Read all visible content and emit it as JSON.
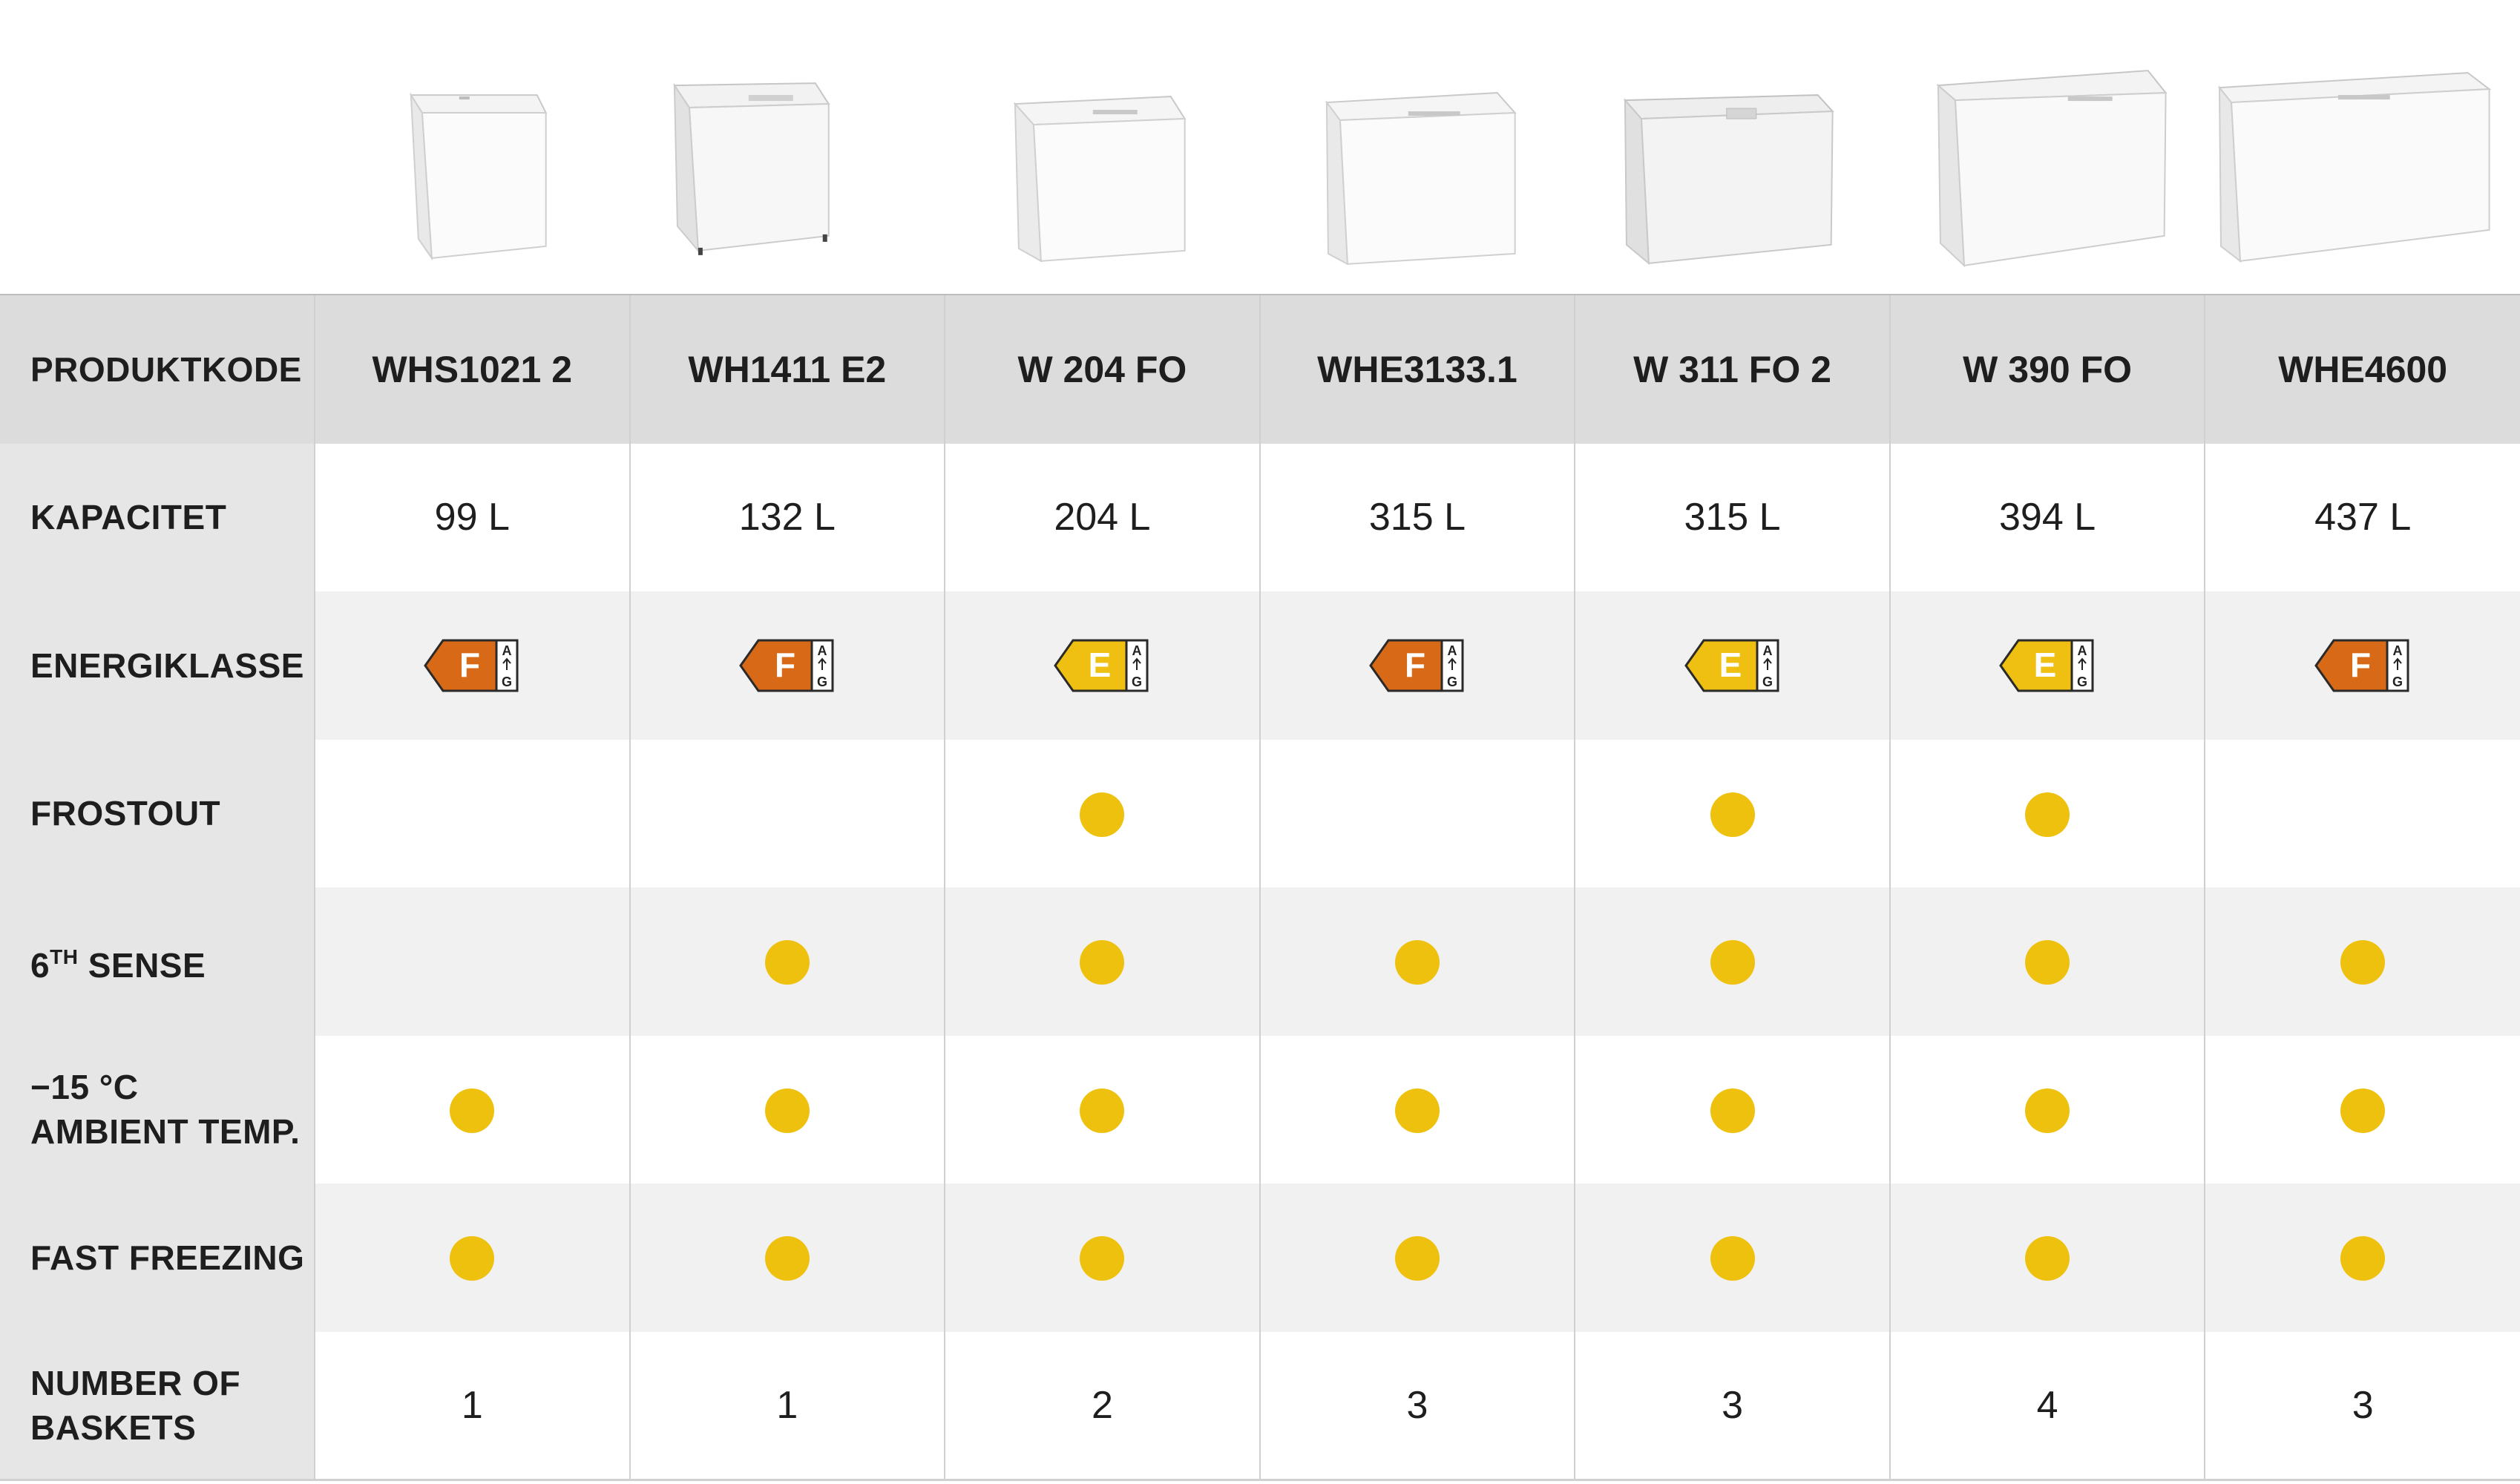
{
  "colors": {
    "header_bg": "#dcdcdc",
    "label_bg": "#e6e6e6",
    "odd_row_bg": "#f1f1f1",
    "dot": "#efc10f",
    "energy_F": "#d86a17",
    "energy_E": "#efbf12"
  },
  "table": {
    "header": {
      "label": "PRODUKTKODE",
      "codes": [
        "WHS1021 2",
        "WH1411 E2",
        "W 204 FO",
        "WHE3133.1",
        "W 311 FO 2",
        "W 390 FO",
        "WHE4600"
      ]
    },
    "capacity": {
      "label": "KAPACITET",
      "values": [
        "99 L",
        "132 L",
        "204 L",
        "315 L",
        "315 L",
        "394 L",
        "437 L"
      ]
    },
    "energy": {
      "label": "ENERGIKLASSE",
      "classes": [
        "F",
        "F",
        "E",
        "F",
        "E",
        "E",
        "F"
      ],
      "scale_top": "A",
      "scale_bottom": "G"
    },
    "frostout": {
      "label": "FROSTOUT",
      "available": [
        false,
        false,
        true,
        false,
        true,
        true,
        false
      ]
    },
    "sixth_sense": {
      "label_prefix": "6",
      "label_sup": "TH",
      "label_suffix": " SENSE",
      "available": [
        false,
        true,
        true,
        true,
        true,
        true,
        true
      ]
    },
    "ambient": {
      "label_line1": "−15 °C",
      "label_line2": "AMBIENT TEMP.",
      "available": [
        true,
        true,
        true,
        true,
        true,
        true,
        true
      ]
    },
    "fast_freezing": {
      "label": "FAST FREEZING",
      "available": [
        true,
        true,
        true,
        true,
        true,
        true,
        true
      ]
    },
    "baskets": {
      "label_line1": "NUMBER OF",
      "label_line2": "BASKETS",
      "values": [
        "1",
        "1",
        "2",
        "3",
        "3",
        "4",
        "3"
      ]
    }
  }
}
